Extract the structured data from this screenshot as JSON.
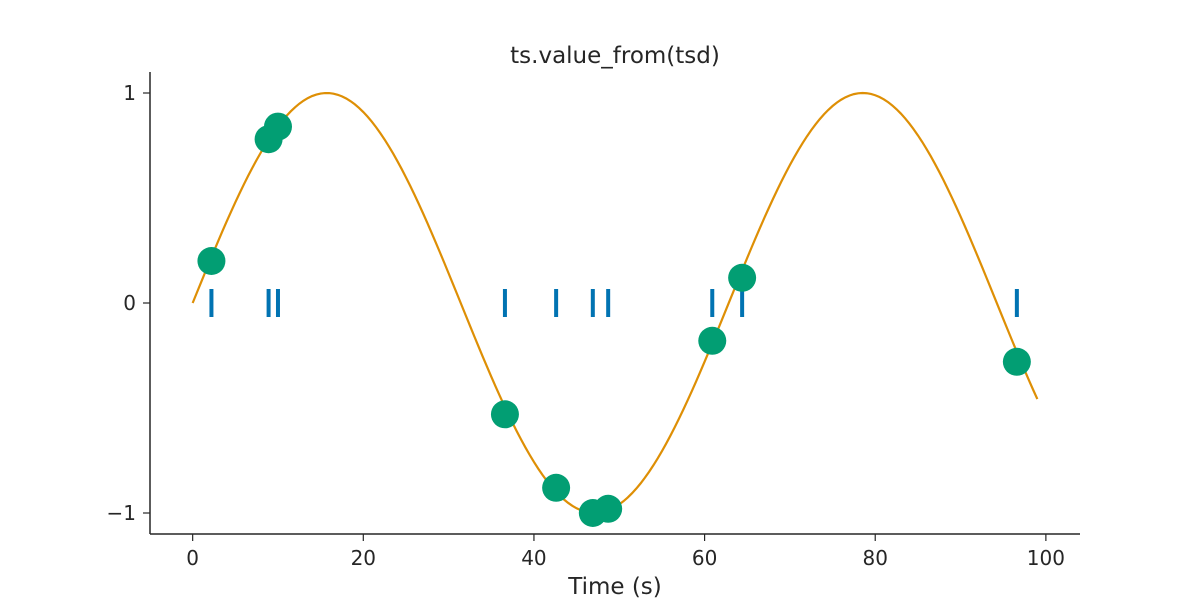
{
  "chart_data": {
    "type": "line",
    "title": "ts.value_from(tsd)",
    "xlabel": "Time (s)",
    "ylabel": "",
    "xlim": [
      -5,
      104
    ],
    "ylim": [
      -1.1,
      1.1
    ],
    "xticks": [
      0,
      20,
      40,
      60,
      80,
      100
    ],
    "yticks": [
      -1,
      0,
      1
    ],
    "xtick_labels": [
      "0",
      "20",
      "40",
      "60",
      "80",
      "100"
    ],
    "ytick_labels": [
      "−1",
      "0",
      "1"
    ],
    "grid": false,
    "colors": {
      "line": "#de8f05",
      "points": "#029e73",
      "events": "#0173b2",
      "axes": "#262626"
    },
    "series": [
      {
        "kind": "line",
        "function": "sin(0.1 * t)",
        "x_range": [
          0,
          99
        ],
        "step": 0.5
      },
      {
        "kind": "scatter",
        "x": [
          2.2,
          8.9,
          10.0,
          36.6,
          42.6,
          46.9,
          48.7,
          60.9,
          64.4,
          96.6
        ],
        "y": [
          0.2,
          0.78,
          0.84,
          -0.53,
          -0.88,
          -1.0,
          -0.98,
          -0.18,
          0.12,
          -0.28
        ]
      },
      {
        "kind": "events",
        "x": [
          2.2,
          8.9,
          10.0,
          36.6,
          42.6,
          46.9,
          48.7,
          60.9,
          64.4,
          96.6
        ],
        "y": 0
      }
    ]
  }
}
